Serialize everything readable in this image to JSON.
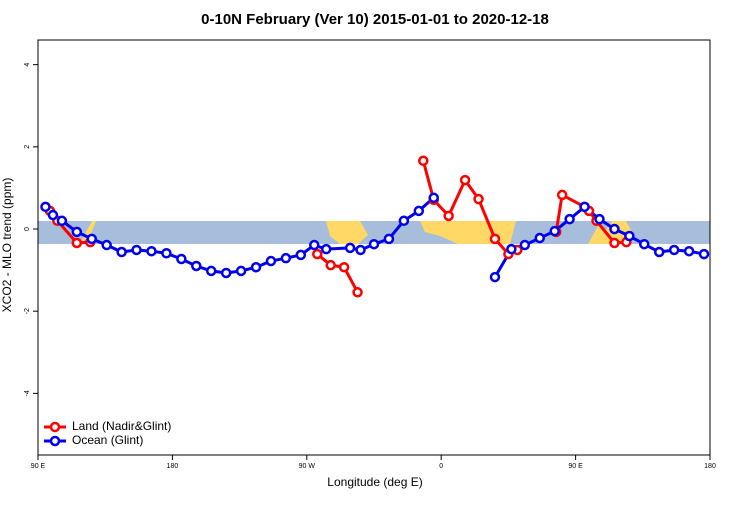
{
  "chart_data": {
    "type": "line",
    "title": "0-10N February (Ver 10)   2015-01-01 to 2020-12-18",
    "x_label": "Longitude (deg E)",
    "y_label": "XCO2 - MLO trend (ppm)",
    "xlim": [
      90,
      540
    ],
    "ylim": [
      -5.5,
      4.6
    ],
    "xticks": [
      {
        "value": 90,
        "label": "90 E"
      },
      180,
      {
        "value": 270,
        "label": "90 W"
      },
      {
        "value": 360,
        "label": "0"
      },
      {
        "value": 450,
        "label": "90 E"
      },
      {
        "value": 540,
        "label": "180"
      }
    ],
    "yticks": [
      -4,
      -2,
      0,
      2,
      4
    ],
    "legend": "bottomleft",
    "series": [
      {
        "name": "Land (Nadir&Glint)",
        "color": "#ff0000",
        "x": [
          98,
          103,
          116,
          125,
          null,
          277,
          286,
          295,
          304,
          null,
          348,
          355,
          365,
          376,
          385,
          396,
          405,
          411,
          null,
          437,
          441,
          456,
          459,
          464,
          476,
          484
        ],
        "values": [
          0.44,
          0.2,
          -0.34,
          -0.32,
          null,
          -0.61,
          -0.88,
          -0.93,
          -1.54,
          null,
          1.66,
          0.71,
          0.32,
          1.19,
          0.73,
          -0.24,
          -0.61,
          -0.51,
          null,
          -0.07,
          0.83,
          0.54,
          0.44,
          0.2,
          -0.34,
          -0.32
        ]
      },
      {
        "name": "Ocean (Glint)",
        "color": "#0000ee",
        "x": [
          95,
          100,
          106,
          116,
          126,
          136,
          146,
          156,
          166,
          176,
          186,
          196,
          206,
          216,
          226,
          236,
          246,
          256,
          266,
          275,
          283,
          299,
          306,
          315,
          325,
          335,
          345,
          355,
          null,
          396,
          407,
          416,
          426,
          436,
          446,
          456,
          466,
          476,
          486,
          496,
          506,
          516,
          526,
          536
        ],
        "values": [
          0.54,
          0.34,
          0.2,
          -0.07,
          -0.24,
          -0.39,
          -0.56,
          -0.51,
          -0.54,
          -0.59,
          -0.73,
          -0.9,
          -1.02,
          -1.07,
          -1.02,
          -0.93,
          -0.78,
          -0.71,
          -0.63,
          -0.39,
          -0.49,
          -0.46,
          -0.51,
          -0.37,
          -0.24,
          0.2,
          0.44,
          0.76,
          null,
          -1.17,
          -0.49,
          -0.39,
          -0.22,
          -0.05,
          0.24,
          0.54,
          0.24,
          0,
          -0.17,
          -0.37,
          -0.56,
          -0.51,
          -0.54,
          -0.61
        ]
      }
    ]
  }
}
